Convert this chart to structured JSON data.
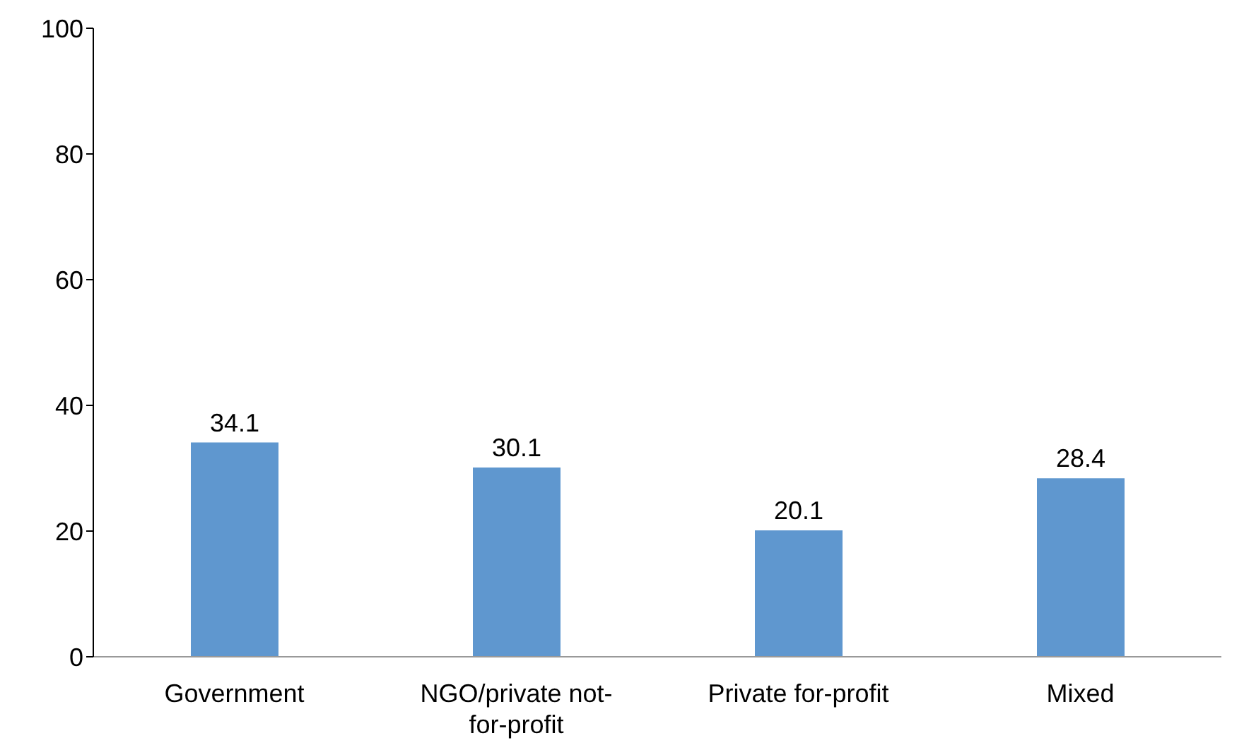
{
  "chart_data": {
    "type": "bar",
    "categories": [
      "Government",
      "NGO/private not-for-profit",
      "Private for-profit",
      "Mixed"
    ],
    "values": [
      34.1,
      30.1,
      20.1,
      28.4
    ],
    "color": "#5f97cf",
    "ylim": [
      0,
      100
    ],
    "yticks": [
      0,
      20,
      40,
      60,
      80,
      100
    ],
    "data_labels": true
  }
}
